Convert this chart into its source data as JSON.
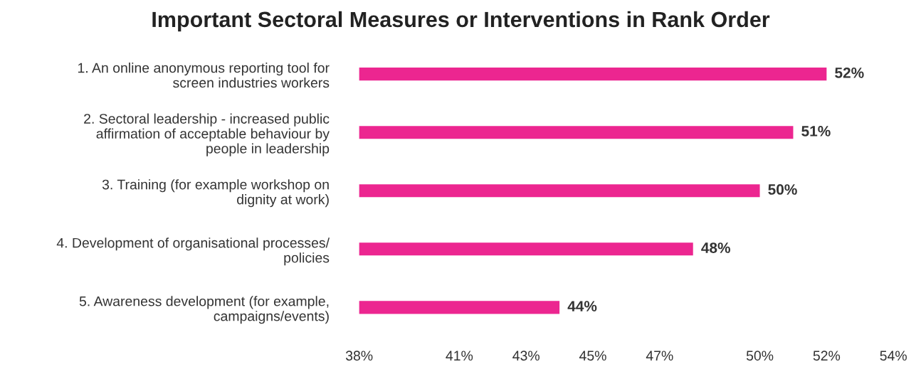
{
  "chart_data": {
    "type": "bar",
    "orientation": "horizontal",
    "title": "Important Sectoral Measures or Interventions in Rank Order",
    "categories": [
      "1. An online anonymous reporting tool for\nscreen industries workers",
      "2. Sectoral leadership - increased public\naffirmation of acceptable behaviour by\npeople in leadership",
      "3. Training (for example workshop on\ndignity at work)",
      "4. Development of organisational processes/\npolicies",
      "5. Awareness development (for example,\ncampaigns/events)"
    ],
    "values": [
      52,
      51,
      50,
      48,
      44
    ],
    "value_labels": [
      "52%",
      "51%",
      "50%",
      "48%",
      "44%"
    ],
    "color": "#ec2690",
    "xlim": [
      38,
      54
    ],
    "xticks": [
      {
        "value": 38,
        "label": "38%"
      },
      {
        "value": 41,
        "label": "41%"
      },
      {
        "value": 43,
        "label": "43%"
      },
      {
        "value": 45,
        "label": "45%"
      },
      {
        "value": 47,
        "label": "47%"
      },
      {
        "value": 50,
        "label": "50%"
      },
      {
        "value": 52,
        "label": "52%"
      },
      {
        "value": 54,
        "label": "54%"
      }
    ],
    "grid": false,
    "legend": false
  }
}
